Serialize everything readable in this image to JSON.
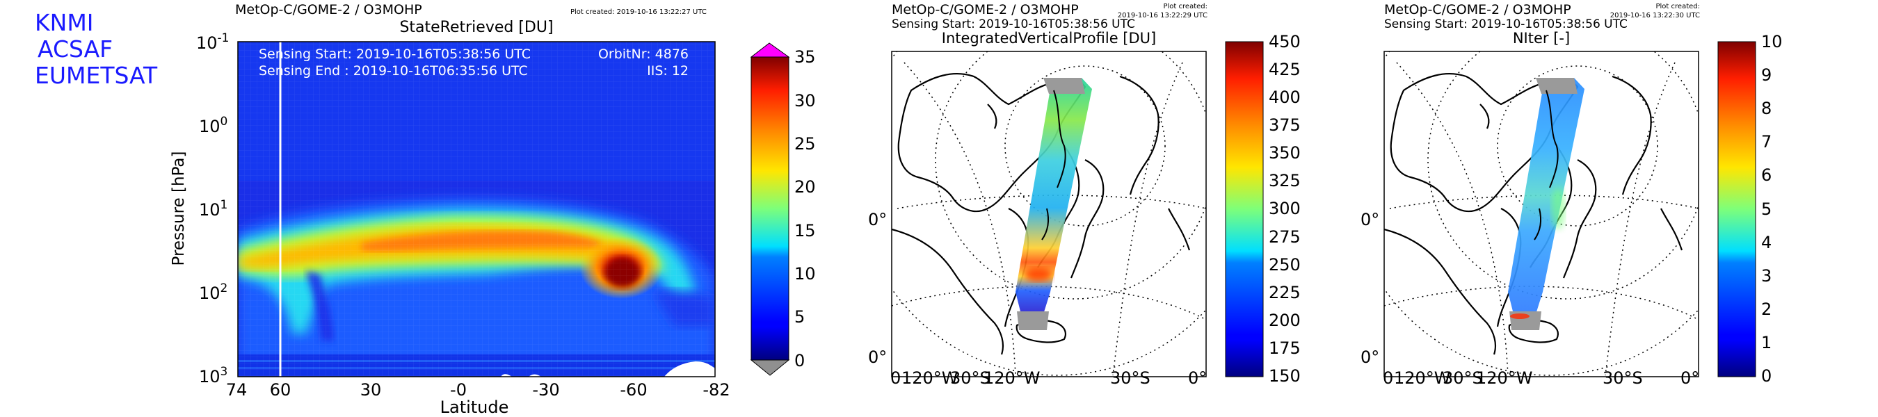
{
  "organization": [
    "KNMI",
    "ACSAF",
    "EUMETSAT"
  ],
  "panels": {
    "profile": {
      "header": "MetOp-C/GOME-2 / O3MOHP",
      "plot_created": "Plot created: 2019-10-16 13:22:27 UTC",
      "title": "StateRetrieved [DU]",
      "annotations": {
        "sensing_start": "Sensing Start: 2019-10-16T05:38:56 UTC",
        "sensing_end": "Sensing End  : 2019-10-16T06:35:56 UTC",
        "orbit": "OrbitNr: 4876",
        "iis": "IIS: 12"
      },
      "xlabel": "Latitude",
      "ylabel": "Pressure [hPa]",
      "xticks": [
        "74",
        "60",
        "30",
        "-0",
        "-30",
        "-60",
        "-82"
      ],
      "yticks": [
        {
          "base": "10",
          "exp": "-1"
        },
        {
          "base": "10",
          "exp": "0"
        },
        {
          "base": "10",
          "exp": "1"
        },
        {
          "base": "10",
          "exp": "2"
        },
        {
          "base": "10",
          "exp": "3"
        }
      ],
      "colorbar_ticks": [
        "35",
        "30",
        "25",
        "20",
        "15",
        "10",
        "5",
        "0"
      ]
    },
    "map1": {
      "header": "MetOp-C/GOME-2 / O3MOHP",
      "sensing": "Sensing Start: 2019-10-16T05:38:56 UTC",
      "plot_created": [
        "Plot created:",
        "2019-10-16 13:22:29 UTC"
      ],
      "title": "IntegratedVerticalProfile [DU]",
      "labels": {
        "lat_mid": "0°",
        "lat_bottom": "0°",
        "bottom": [
          "0",
          "120°W",
          "30°S",
          "120°W",
          "30°S",
          "0°"
        ]
      },
      "colorbar_ticks": [
        "450",
        "425",
        "400",
        "375",
        "350",
        "325",
        "300",
        "275",
        "250",
        "225",
        "200",
        "175",
        "150"
      ]
    },
    "map2": {
      "header": "MetOp-C/GOME-2 / O3MOHP",
      "sensing": "Sensing Start: 2019-10-16T05:38:56 UTC",
      "plot_created": [
        "Plot created:",
        "2019-10-16 13:22:30 UTC"
      ],
      "title": "NIter [-]",
      "labels": {
        "lat_mid": "0°",
        "lat_bottom": "0°",
        "bottom": [
          "0",
          "120°W",
          "30°S",
          "120°W",
          "30°S",
          "0°"
        ]
      },
      "colorbar_ticks": [
        "10",
        "9",
        "8",
        "7",
        "6",
        "5",
        "4",
        "3",
        "2",
        "1",
        "0"
      ]
    }
  },
  "chart_data": [
    {
      "type": "heatmap",
      "title": "StateRetrieved [DU]",
      "xlabel": "Latitude",
      "ylabel": "Pressure [hPa]",
      "x_range": [
        74,
        -82
      ],
      "y_range_hPa": [
        0.1,
        1000
      ],
      "y_scale": "log",
      "colorscale": "jet",
      "color_range": [
        0,
        35
      ],
      "profile_maximum": {
        "latitude": -58,
        "pressure_hPa": 60,
        "value_DU": 35
      },
      "ozone_layer_pressure_hPa": [
        10,
        100
      ]
    },
    {
      "type": "heatmap",
      "title": "IntegratedVerticalProfile [DU]",
      "map_projection": "polar",
      "colorscale": "jet",
      "color_range": [
        150,
        450
      ]
    },
    {
      "type": "heatmap",
      "title": "NIter [-]",
      "map_projection": "polar",
      "colorscale": "jet",
      "color_range": [
        0,
        10
      ]
    }
  ]
}
